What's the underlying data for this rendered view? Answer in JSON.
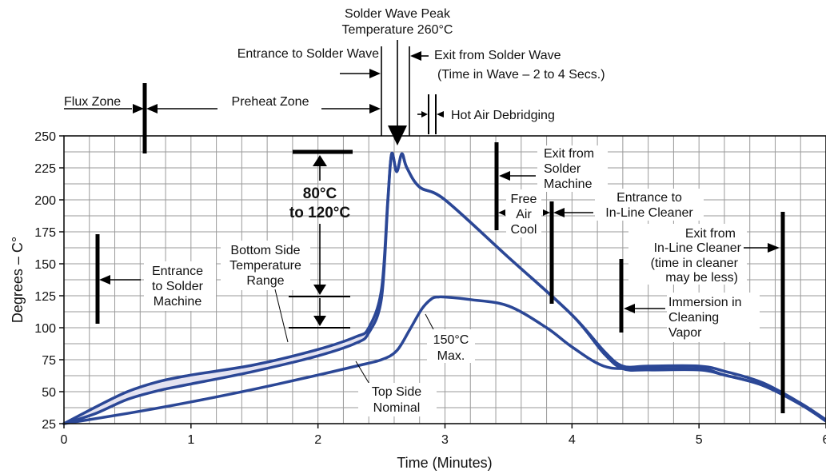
{
  "chart_data": {
    "type": "line",
    "xlabel": "Time (Minutes)",
    "ylabel": "Degrees – C°",
    "xlim": [
      0,
      6
    ],
    "ylim": [
      25,
      250
    ],
    "x_ticks": [
      "0",
      "1",
      "2",
      "3",
      "4",
      "5",
      "6"
    ],
    "y_ticks": [
      "25",
      "50",
      "75",
      "100",
      "125",
      "150",
      "175",
      "200",
      "225",
      "250"
    ],
    "grid": true,
    "series": [
      {
        "x": [
          0,
          0.25,
          0.5,
          0.75,
          1.0,
          1.5,
          2.0,
          2.3,
          2.4,
          2.5,
          2.55,
          2.58,
          2.62,
          2.66,
          2.7,
          2.8,
          3.0,
          3.5,
          4.0,
          4.25,
          4.4,
          4.6,
          5.0,
          5.2,
          5.5,
          5.8,
          6.0
        ],
        "values": [
          25,
          38,
          50,
          58,
          63,
          71,
          83,
          93,
          100,
          130,
          200,
          236,
          222,
          236,
          225,
          210,
          200,
          155,
          110,
          82,
          70,
          70,
          70,
          66,
          57,
          41,
          28
        ]
      },
      {
        "x": [
          0,
          0.25,
          0.5,
          0.75,
          1.0,
          1.5,
          2.0,
          2.3,
          2.4,
          2.5,
          2.55,
          2.58,
          2.62,
          2.66,
          2.7,
          2.8,
          3.0,
          3.5,
          4.0,
          4.25,
          4.4,
          4.6,
          5.0,
          5.2,
          5.5,
          5.8,
          6.0
        ],
        "values": [
          25,
          33,
          44,
          51,
          56,
          66,
          78,
          88,
          96,
          123,
          198,
          236,
          222,
          236,
          225,
          210,
          200,
          155,
          110,
          80,
          68,
          67,
          67,
          63,
          55,
          40,
          27
        ]
      },
      {
        "x": [
          0,
          0.5,
          1.0,
          1.5,
          2.0,
          2.3,
          2.5,
          2.62,
          2.72,
          2.82,
          2.9,
          2.95,
          3.0,
          3.2,
          3.5,
          3.8,
          4.0,
          4.25,
          4.5,
          5.0,
          5.2,
          5.5,
          5.8,
          6.0
        ],
        "values": [
          25,
          33,
          42,
          52,
          63,
          70,
          75,
          82,
          98,
          115,
          123,
          124,
          124,
          122,
          117,
          100,
          85,
          70,
          68,
          68,
          63,
          55,
          40,
          27
        ]
      }
    ],
    "annotations": {
      "peak_line1": "Solder Wave Peak",
      "peak_line2": "Temperature 260°C",
      "entrance_wave": "Entrance to Solder Wave",
      "exit_wave": "Exit from Solder Wave",
      "time_in_wave": "(Time in Wave – 2 to 4 Secs.)",
      "flux_zone": "Flux Zone",
      "preheat_zone": "Preheat Zone",
      "hot_air": "Hot Air Debridging",
      "range_line1": "80°C",
      "range_line2": "to 120°C",
      "entrance_machine_l1": "Entrance",
      "entrance_machine_l2": "to Solder",
      "entrance_machine_l3": "Machine",
      "bottom_l1": "Bottom Side",
      "bottom_l2": "Temperature",
      "bottom_l3": "Range",
      "top_l1": "Top Side",
      "top_l2": "Nominal",
      "max_l1": "150°C",
      "max_l2": "Max.",
      "exit_machine_l1": "Exit from",
      "exit_machine_l2": "Solder",
      "exit_machine_l3": "Machine",
      "free_l1": "Free",
      "free_l2": "Air",
      "free_l3": "Cool",
      "cleaner_in_l1": "Entrance to",
      "cleaner_in_l2": "In-Line Cleaner",
      "cleaner_out_l1": "Exit from",
      "cleaner_out_l2": "In-Line Cleaner",
      "cleaner_out_l3": "(time in cleaner",
      "cleaner_out_l4": "may be less)",
      "immersion_l1": "Immersion in",
      "immersion_l2": "Cleaning",
      "immersion_l3": "Vapor"
    },
    "colors": {
      "curve": "#2b4796",
      "band_fill": "#e4e3f1",
      "grid": "#9a9a9a",
      "marker": "#000000"
    }
  }
}
